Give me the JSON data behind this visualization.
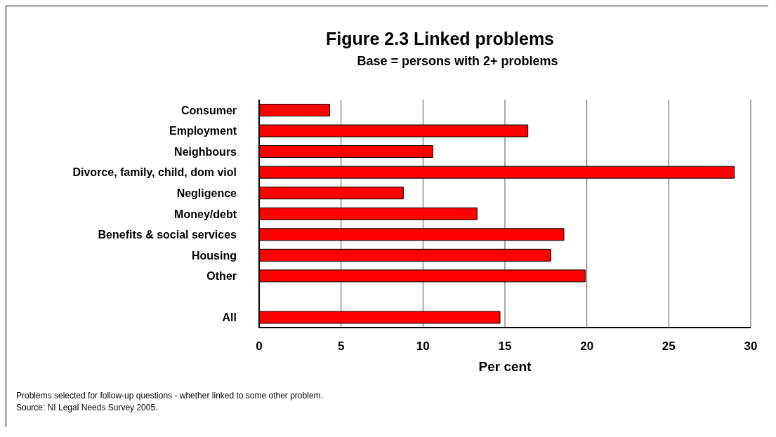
{
  "chart_data": {
    "type": "bar",
    "orientation": "horizontal",
    "title": "Figure 2.3 Linked problems",
    "subtitle": "Base = persons with 2+ problems",
    "xlabel": "Per cent",
    "categories": [
      "Consumer",
      "Employment",
      "Neighbours",
      "Divorce, family, child, dom viol",
      "Negligence",
      "Money/debt",
      "Benefits & social services",
      "Housing",
      "Other",
      null,
      "All"
    ],
    "values": [
      4.3,
      16.4,
      10.6,
      29.0,
      8.8,
      13.3,
      18.6,
      17.8,
      19.9,
      null,
      14.7
    ],
    "color": "#ff0000",
    "xlim": [
      0,
      30
    ],
    "xticks": [
      0,
      5,
      10,
      15,
      20,
      25,
      30
    ],
    "grid": "x",
    "annotations": [
      "Problems selected for follow-up questions - whether linked to some other problem.",
      "Source: NI Legal Needs Survey 2005."
    ]
  }
}
